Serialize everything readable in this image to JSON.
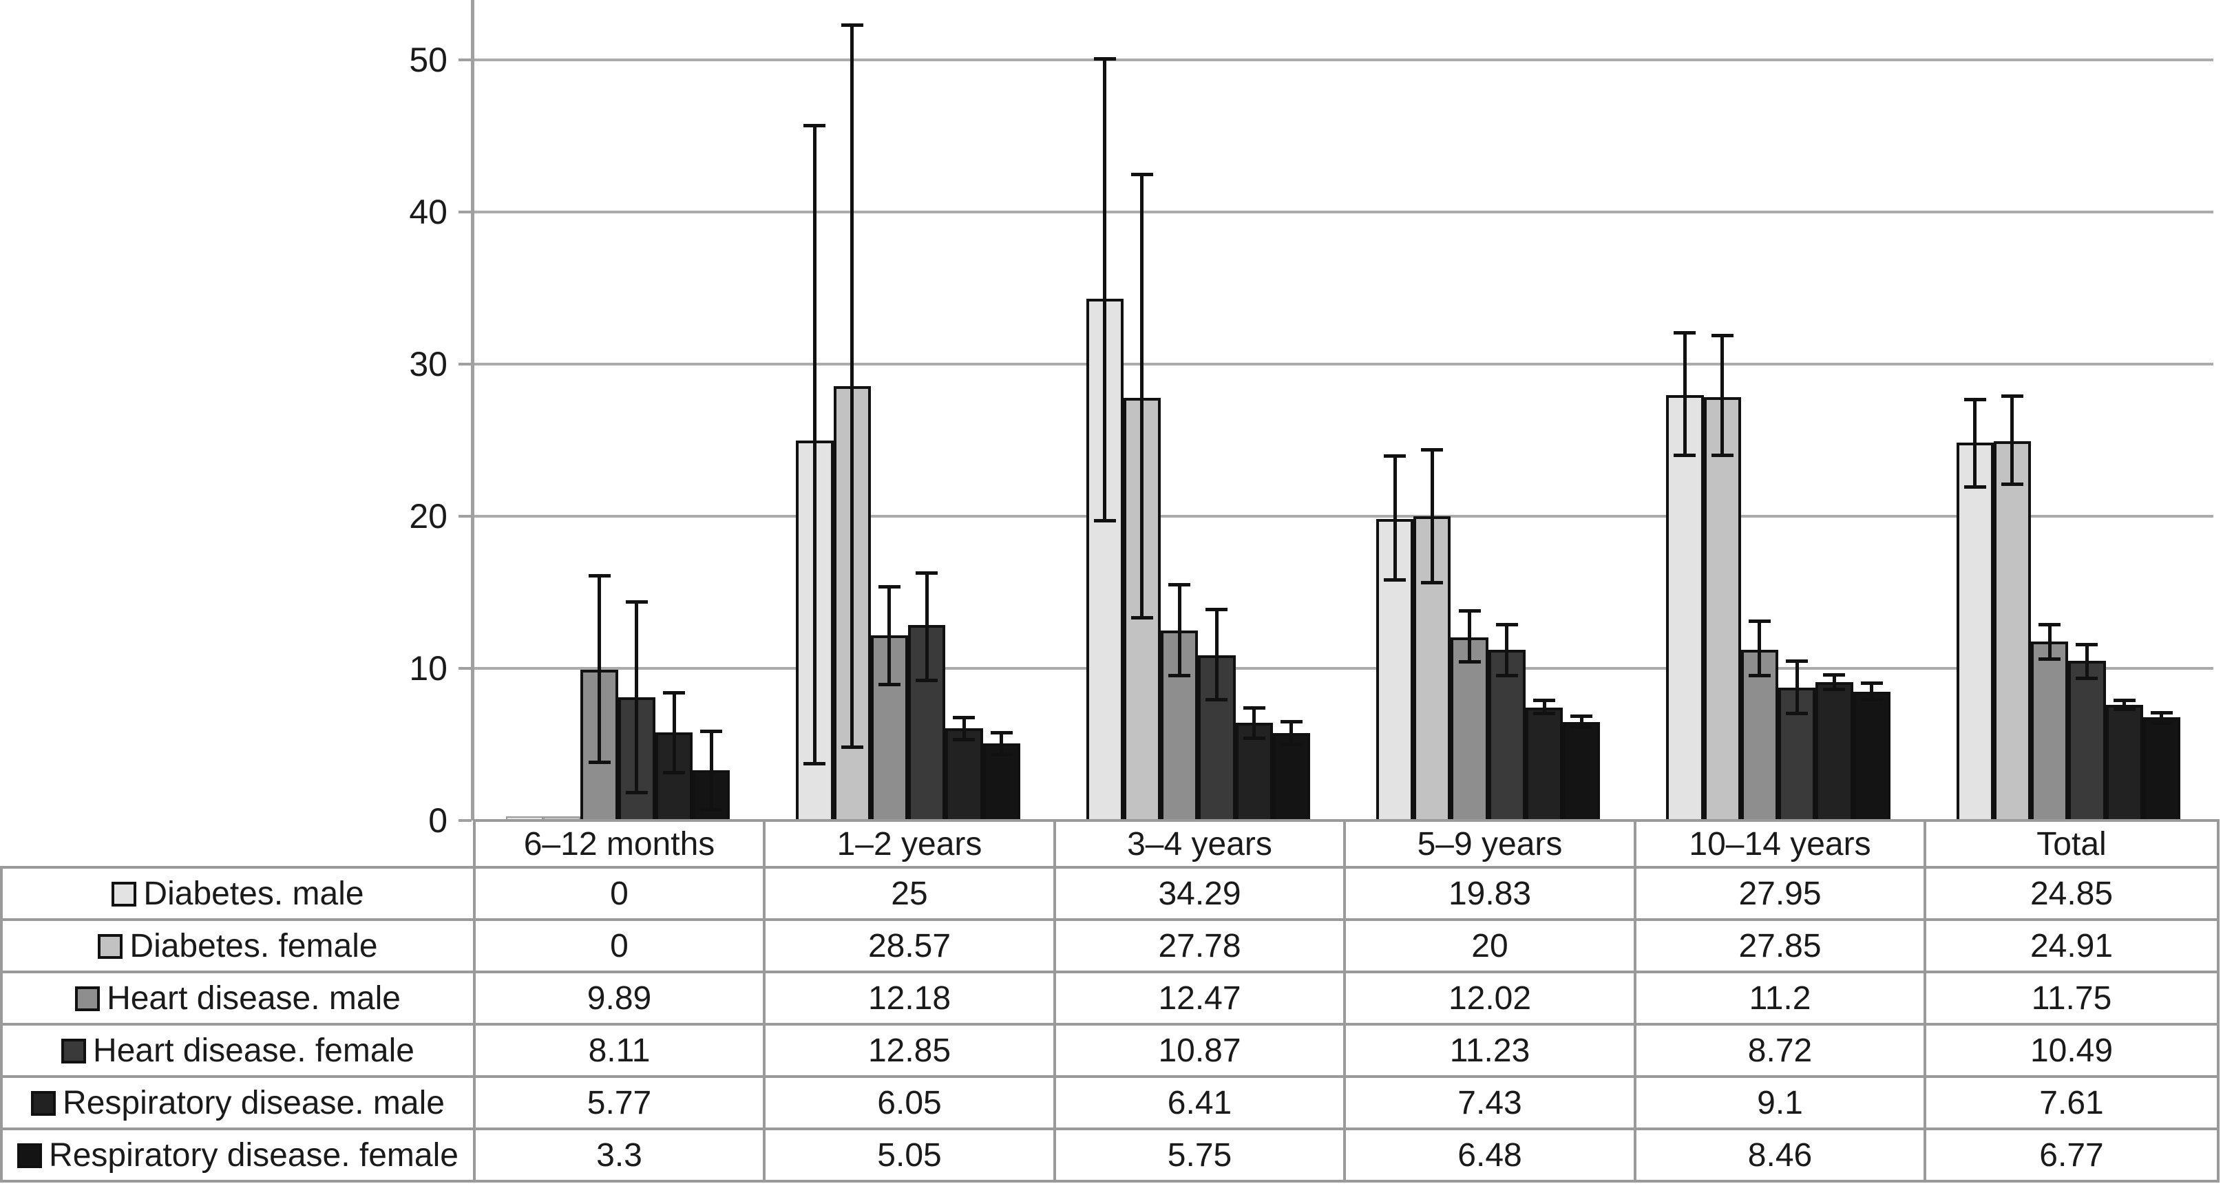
{
  "chart_data": {
    "type": "bar",
    "title": "",
    "xlabel": "",
    "ylabel": "",
    "categories": [
      "6–12 months",
      "1–2 years",
      "3–4 years",
      "5–9 years",
      "10–14 years",
      "Total"
    ],
    "series": [
      {
        "name": "Diabetes. male",
        "color": "#e3e3e3",
        "values": [
          0,
          25,
          34.29,
          19.83,
          27.95,
          24.85
        ],
        "errors": [
          null,
          [
            3.7,
            45.7
          ],
          [
            19.7,
            50.1
          ],
          [
            15.8,
            24.0
          ],
          [
            24.0,
            32.1
          ],
          [
            21.9,
            27.7
          ]
        ]
      },
      {
        "name": "Diabetes. female",
        "color": "#c2c2c2",
        "values": [
          0,
          28.57,
          27.78,
          20,
          27.85,
          24.91
        ],
        "errors": [
          null,
          [
            4.8,
            52.3
          ],
          [
            13.3,
            42.5
          ],
          [
            15.6,
            24.4
          ],
          [
            24.0,
            31.9
          ],
          [
            22.1,
            27.9
          ]
        ]
      },
      {
        "name": "Heart disease. male",
        "color": "#8e8e8e",
        "values": [
          9.89,
          12.18,
          12.47,
          12.02,
          11.2,
          11.75
        ],
        "errors": [
          [
            3.8,
            16.1
          ],
          [
            8.9,
            15.4
          ],
          [
            9.5,
            15.5
          ],
          [
            10.4,
            13.8
          ],
          [
            9.5,
            13.1
          ],
          [
            10.6,
            12.9
          ]
        ]
      },
      {
        "name": "Heart disease. female",
        "color": "#3a3a3a",
        "values": [
          8.11,
          12.85,
          10.87,
          11.23,
          8.72,
          10.49
        ],
        "errors": [
          [
            1.8,
            14.4
          ],
          [
            9.2,
            16.3
          ],
          [
            7.9,
            13.9
          ],
          [
            9.5,
            12.9
          ],
          [
            7.0,
            10.5
          ],
          [
            9.3,
            11.6
          ]
        ]
      },
      {
        "name": "Respiratory disease. male",
        "color": "#222222",
        "values": [
          5.77,
          6.05,
          6.41,
          7.43,
          9.1,
          7.61
        ],
        "errors": [
          [
            3.1,
            8.4
          ],
          [
            5.3,
            6.8
          ],
          [
            5.4,
            7.4
          ],
          [
            7.0,
            7.9
          ],
          [
            8.6,
            9.6
          ],
          [
            7.3,
            7.9
          ]
        ]
      },
      {
        "name": "Respiratory disease. female",
        "color": "#141414",
        "values": [
          3.3,
          5.05,
          5.75,
          6.48,
          8.46,
          6.77
        ],
        "errors": [
          [
            0.7,
            5.9
          ],
          [
            4.3,
            5.8
          ],
          [
            5.0,
            6.5
          ],
          [
            6.1,
            6.9
          ],
          [
            7.9,
            9.05
          ],
          [
            6.4,
            7.1
          ]
        ]
      }
    ],
    "yticks": [
      0,
      10,
      20,
      30,
      40,
      50
    ],
    "ylim": [
      0,
      53.9
    ],
    "grid": "horizontal",
    "error_bars": true,
    "legend_position": "table-left-column",
    "colors": {
      "gridline": "#ababab",
      "axis": "#a0a0a0",
      "bar_border": "#111111",
      "error_bar": "#111111",
      "table_border": "#9a9a9a",
      "text": "#1a1a1a",
      "background": "#ffffff"
    }
  }
}
